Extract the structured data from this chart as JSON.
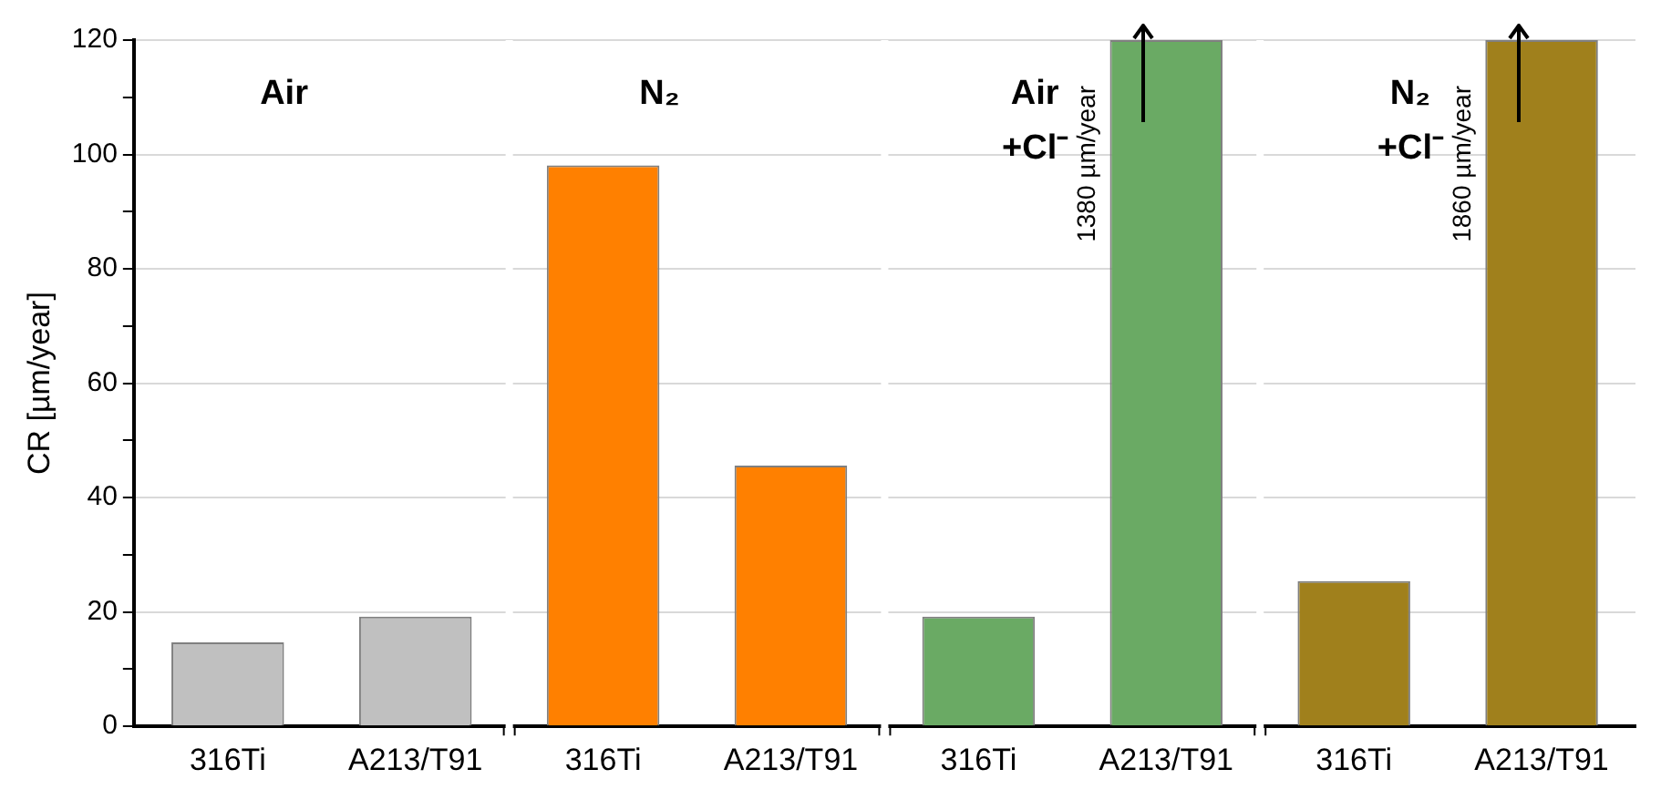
{
  "chart_data": {
    "type": "bar",
    "ylabel": "CR [µm/year]",
    "categories": [
      "316Ti",
      "A213/T91",
      "316Ti",
      "A213/T91",
      "316Ti",
      "A213/T91",
      "316Ti",
      "A213/T91"
    ],
    "values": [
      14.7,
      19.2,
      98.1,
      45.6,
      19.2,
      120,
      25.4,
      120
    ],
    "colors": [
      "#c0c0c0",
      "#c0c0c0",
      "#ff8000",
      "#ff8000",
      "#6aaa64",
      "#6aaa64",
      "#a0801c",
      "#a0801c"
    ],
    "ylim": [
      0,
      120
    ],
    "yticks": [
      0,
      {
        "value": 10,
        "label": null
      },
      20,
      {
        "value": 30,
        "label": null
      },
      40,
      {
        "value": 50,
        "label": null
      },
      60,
      {
        "value": 70,
        "label": null
      },
      80,
      {
        "value": 90,
        "label": null
      },
      100,
      {
        "value": 110,
        "label": null
      },
      120
    ],
    "grid": "y",
    "annotations": [
      "Air",
      "N₂",
      "Air +Cl⁻",
      "N₂ +Cl⁻",
      "1380 µm/year",
      "1860 µm/year"
    ]
  }
}
